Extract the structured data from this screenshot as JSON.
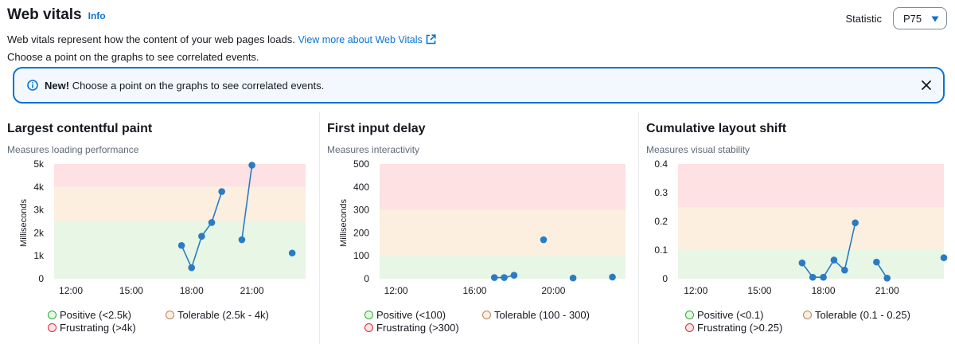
{
  "header": {
    "title": "Web vitals",
    "info": "Info",
    "description": "Web vitals represent how the content of your web pages loads.",
    "link": "View more about Web Vitals",
    "hint": "Choose a point on the graphs to see correlated events.",
    "statistic_label": "Statistic",
    "statistic_value": "P75"
  },
  "alert": {
    "bold": "New!",
    "text": "Choose a point on the graphs to see correlated events."
  },
  "colors": {
    "positive_fill": "#e7f6e5",
    "tolerable_fill": "#fcefe0",
    "frustrating_fill": "#fde1e3",
    "positive_stroke": "#29ad32",
    "tolerable_stroke": "#b0875e",
    "frustrating_stroke": "#d42f44",
    "series": "#2b7bc4",
    "accent": "#0972d3"
  },
  "panels": [
    {
      "title": "Largest contentful paint",
      "subtitle": "Measures loading performance",
      "legend": [
        "Positive (<2.5k)",
        "Tolerable (2.5k - 4k)",
        "Frustrating (>4k)"
      ]
    },
    {
      "title": "First input delay",
      "subtitle": "Measures interactivity",
      "legend": [
        "Positive (<100)",
        "Tolerable (100 - 300)",
        "Frustrating (>300)"
      ]
    },
    {
      "title": "Cumulative layout shift",
      "subtitle": "Measures visual stability",
      "legend": [
        "Positive (<0.1)",
        "Tolerable (0.1 - 0.25)",
        "Frustrating (>0.25)"
      ]
    }
  ],
  "chart_data": [
    {
      "type": "line",
      "title": "Largest contentful paint",
      "ylabel": "Milliseconds",
      "ylim": [
        0,
        5000
      ],
      "yticks": [
        0,
        1000,
        2000,
        3000,
        4000,
        5000
      ],
      "ytick_labels": [
        "0",
        "1k",
        "2k",
        "3k",
        "4k",
        "5k"
      ],
      "xlim": [
        "11:10",
        "23:40"
      ],
      "xticks": [
        "12:00",
        "15:00",
        "18:00",
        "21:00"
      ],
      "bands": {
        "positive": [
          0,
          2500
        ],
        "tolerable": [
          2500,
          4000
        ],
        "frustrating": [
          4000,
          5000
        ]
      },
      "series": [
        {
          "segments": [
            [
              [
                "17:30",
                1450
              ],
              [
                "18:00",
                480
              ],
              [
                "18:30",
                1850
              ],
              [
                "19:00",
                2450
              ],
              [
                "19:30",
                3800
              ]
            ],
            [
              [
                "20:30",
                1700
              ],
              [
                "21:00",
                4950
              ]
            ],
            [
              [
                "23:00",
                1120
              ]
            ]
          ]
        }
      ]
    },
    {
      "type": "line",
      "title": "First input delay",
      "ylabel": "Milliseconds",
      "ylim": [
        0,
        500
      ],
      "yticks": [
        0,
        100,
        200,
        300,
        400,
        500
      ],
      "ytick_labels": [
        "0",
        "100",
        "200",
        "300",
        "400",
        "500"
      ],
      "xlim": [
        "11:10",
        "23:40"
      ],
      "xticks": [
        "12:00",
        "16:00",
        "20:00"
      ],
      "bands": {
        "positive": [
          0,
          100
        ],
        "tolerable": [
          100,
          300
        ],
        "frustrating": [
          300,
          500
        ]
      },
      "series": [
        {
          "segments": [
            [
              [
                "17:00",
                5
              ],
              [
                "17:30",
                5
              ],
              [
                "18:00",
                15
              ]
            ],
            [
              [
                "19:30",
                170
              ]
            ],
            [
              [
                "21:00",
                3
              ]
            ],
            [
              [
                "23:00",
                7
              ]
            ]
          ]
        }
      ]
    },
    {
      "type": "line",
      "title": "Cumulative layout shift",
      "ylabel": "",
      "ylim": [
        0,
        0.4
      ],
      "yticks": [
        0,
        0.1,
        0.2,
        0.3,
        0.4
      ],
      "ytick_labels": [
        "0",
        "0.1",
        "0.2",
        "0.3",
        "0.4"
      ],
      "xlim": [
        "11:10",
        "23:40"
      ],
      "xticks": [
        "12:00",
        "15:00",
        "18:00",
        "21:00"
      ],
      "bands": {
        "positive": [
          0,
          0.1
        ],
        "tolerable": [
          0.1,
          0.25
        ],
        "frustrating": [
          0.25,
          0.4
        ]
      },
      "series": [
        {
          "segments": [
            [
              [
                "17:00",
                0.055
              ],
              [
                "17:30",
                0.005
              ],
              [
                "18:00",
                0.005
              ],
              [
                "18:30",
                0.065
              ],
              [
                "19:00",
                0.03
              ],
              [
                "19:30",
                0.195
              ]
            ],
            [
              [
                "20:30",
                0.058
              ],
              [
                "21:00",
                0.002
              ]
            ],
            [
              [
                "23:40",
                0.073
              ]
            ]
          ]
        }
      ]
    }
  ]
}
